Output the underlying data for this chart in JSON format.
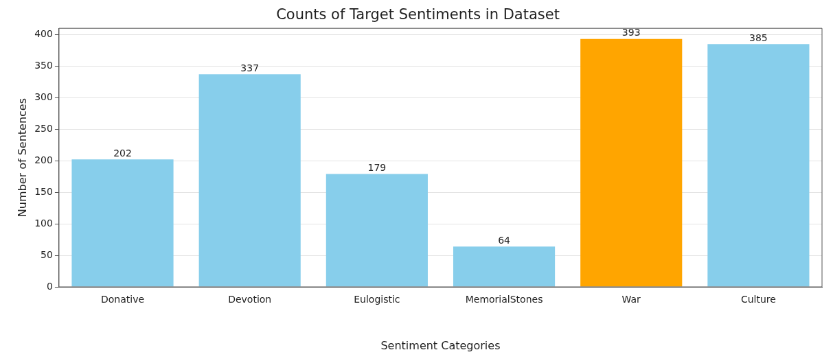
{
  "chart_data": {
    "type": "bar",
    "title": "Counts of Target Sentiments in Dataset",
    "xlabel": "Sentiment Categories",
    "ylabel": "Number of Sentences",
    "categories": [
      "Donative",
      "Devotion",
      "Eulogistic",
      "MemorialStones",
      "War",
      "Culture"
    ],
    "values": [
      202,
      337,
      179,
      64,
      393,
      385
    ],
    "colors": [
      "#87ceeb",
      "#87ceeb",
      "#87ceeb",
      "#87ceeb",
      "#ffa500",
      "#87ceeb"
    ],
    "ylim": [
      0,
      410
    ],
    "yticks": [
      0,
      50,
      100,
      150,
      200,
      250,
      300,
      350,
      400
    ],
    "grid": "y",
    "data_labels": true
  }
}
